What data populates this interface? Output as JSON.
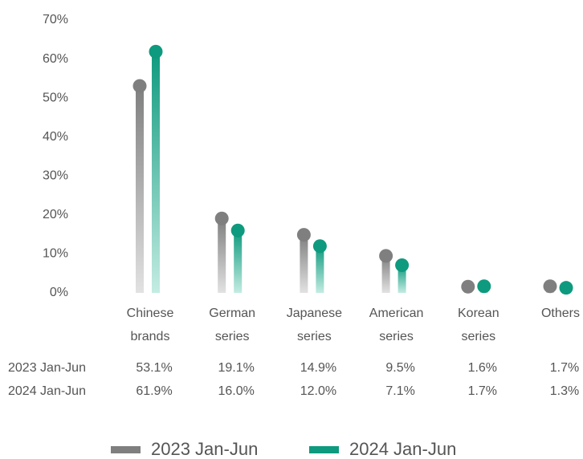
{
  "chart_data": {
    "type": "lollipop",
    "categories": [
      "Chinese brands",
      "German series",
      "Japanese series",
      "American series",
      "Korean series",
      "Others"
    ],
    "series": [
      {
        "name": "2023 Jan-Jun",
        "color": "#7f7f7f",
        "values": [
          53.1,
          19.1,
          14.9,
          9.5,
          1.6,
          1.7
        ],
        "value_labels": [
          "53.1%",
          "19.1%",
          "14.9%",
          "9.5%",
          "1.6%",
          "1.7%"
        ]
      },
      {
        "name": "2024 Jan-Jun",
        "color": "#0e9a7e",
        "values": [
          61.9,
          16.0,
          12.0,
          7.1,
          1.7,
          1.3
        ],
        "value_labels": [
          "61.9%",
          "16.0%",
          "12.0%",
          "7.1%",
          "1.7%",
          "1.3%"
        ]
      }
    ],
    "ylim": [
      0,
      70
    ],
    "yticks": [
      {
        "value": 0,
        "label": "0%"
      },
      {
        "value": 10,
        "label": "10%"
      },
      {
        "value": 20,
        "label": "20%"
      },
      {
        "value": 30,
        "label": "30%"
      },
      {
        "value": 40,
        "label": "40%"
      },
      {
        "value": 50,
        "label": "50%"
      },
      {
        "value": 60,
        "label": "60%"
      },
      {
        "value": 70,
        "label": "70%"
      }
    ]
  }
}
